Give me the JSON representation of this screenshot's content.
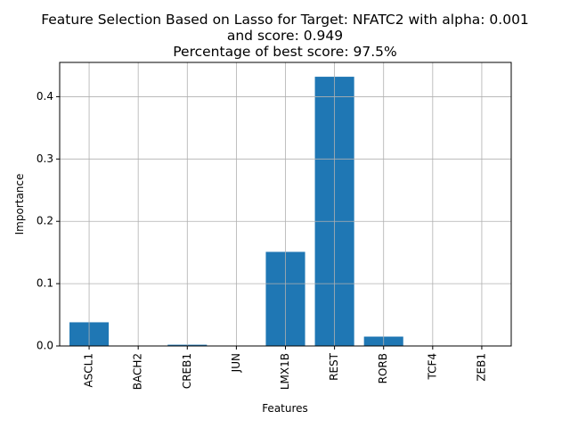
{
  "chart_data": {
    "type": "bar",
    "title_lines": [
      "Feature Selection Based on Lasso for Target: NFATC2 with alpha: 0.001",
      "and score: 0.949",
      "Percentage of best score: 97.5%"
    ],
    "xlabel": "Features",
    "ylabel": "Importance",
    "categories": [
      "ASCL1",
      "BACH2",
      "CREB1",
      "JUN",
      "LMX1B",
      "REST",
      "RORB",
      "TCF4",
      "ZEB1"
    ],
    "values": [
      0.038,
      0.0,
      0.002,
      0.0,
      0.151,
      0.432,
      0.015,
      0.0,
      0.0
    ],
    "ylim": [
      0,
      0.455
    ],
    "yticks": [
      0.0,
      0.1,
      0.2,
      0.3,
      0.4
    ],
    "ytick_labels": [
      "0.0",
      "0.1",
      "0.2",
      "0.3",
      "0.4"
    ],
    "grid": true,
    "bar_color": "#1f77b4",
    "grid_color": "#b0b0b0"
  }
}
